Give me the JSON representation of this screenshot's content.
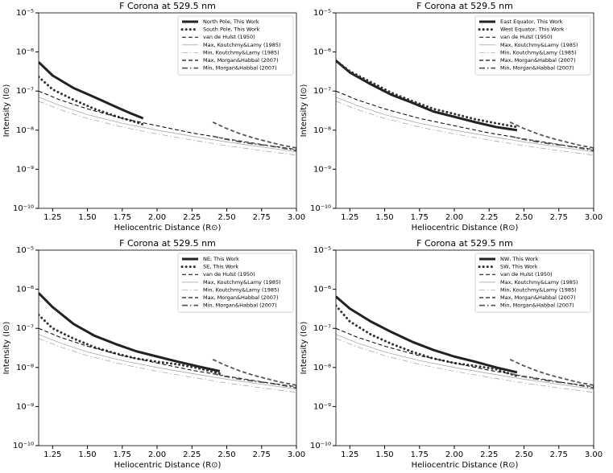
{
  "chart_data": [
    {
      "type": "line",
      "title": "F Corona at 529.5 nm",
      "xlabel": "Heliocentric Distance (R⊙)",
      "ylabel": "Intensity (I⊙)",
      "yscale": "log",
      "legend": "upper right",
      "xlim": [
        1.15,
        3.0
      ],
      "xticks": [
        1.25,
        {
          "value": 1.5,
          "label": "1.50"
        },
        1.75,
        {
          "value": 2,
          "label": "2.00"
        },
        2.25,
        {
          "value": 2.5,
          "label": "2.50"
        },
        2.75,
        {
          "value": 3,
          "label": "3.00"
        }
      ],
      "ylim": [
        1e-10,
        1e-05
      ],
      "yticks": [
        {
          "value": 1e-10,
          "label": "10⁻¹⁰"
        },
        {
          "value": 1e-09,
          "label": "10⁻⁹"
        },
        {
          "value": 1e-08,
          "label": "10⁻⁸"
        },
        {
          "value": 1e-07,
          "label": "10⁻⁷"
        },
        {
          "value": 1e-06,
          "label": "10⁻⁶"
        },
        {
          "value": 1e-05,
          "label": "10⁻⁵"
        }
      ],
      "series": [
        {
          "name": "North Pole, This Work",
          "color": "#222222",
          "linestyle": "solid",
          "linewidth": 3,
          "x": [
            1.15,
            1.25,
            1.4,
            1.55,
            1.7,
            1.8,
            1.9
          ],
          "values": [
            5.5e-07,
            2.5e-07,
            1.2e-07,
            7e-08,
            4e-08,
            2.8e-08,
            2e-08
          ]
        },
        {
          "name": "South Pole, This Work",
          "color": "#333333",
          "linestyle": "dotted",
          "linewidth": 3,
          "x": [
            1.15,
            1.25,
            1.4,
            1.55,
            1.7,
            1.8,
            1.9
          ],
          "values": [
            2.3e-07,
            1.1e-07,
            6e-08,
            3.5e-08,
            2.3e-08,
            1.8e-08,
            1.4e-08
          ]
        },
        {
          "name": "van de Hulst (1950)",
          "color": "#000000",
          "linestyle": "dashed",
          "linewidth": 1,
          "x": [
            1.15,
            1.3,
            1.5,
            1.75,
            2.0,
            2.25,
            2.5,
            2.75,
            3.0
          ],
          "values": [
            1e-07,
            6e-08,
            3.5e-08,
            2e-08,
            1.3e-08,
            8.5e-09,
            6e-09,
            4.3e-09,
            3.2e-09
          ]
        },
        {
          "name": "Max, Koutchmy&Lamy (1985)",
          "color": "#aaaaaa",
          "linestyle": "solid",
          "linewidth": 0.8,
          "x": [
            1.15,
            1.3,
            1.5,
            1.75,
            2.0,
            2.25,
            2.5,
            2.75,
            3.0
          ],
          "values": [
            7e-08,
            4.3e-08,
            2.5e-08,
            1.5e-08,
            1e-08,
            7e-09,
            5e-09,
            3.7e-09,
            2.8e-09
          ]
        },
        {
          "name": "Min, Koutchmy&Lamy (1985)",
          "color": "#aaaaaa",
          "linestyle": "dashdot",
          "linewidth": 0.8,
          "x": [
            1.15,
            1.3,
            1.5,
            1.75,
            2.0,
            2.25,
            2.5,
            2.75,
            3.0
          ],
          "values": [
            5.5e-08,
            3.4e-08,
            2e-08,
            1.2e-08,
            8e-09,
            5.6e-09,
            4e-09,
            3e-09,
            2.3e-09
          ]
        },
        {
          "name": "Max, Morgan&Habbal (2007)",
          "color": "#555555",
          "linestyle": "dashed",
          "linewidth": 1.8,
          "x": [
            2.4,
            2.5,
            2.6,
            2.7,
            2.8,
            2.9,
            3.0
          ],
          "values": [
            1.6e-08,
            1.1e-08,
            8e-09,
            6.2e-09,
            5e-09,
            4.1e-09,
            3.5e-09
          ]
        },
        {
          "name": "Min, Morgan&Habbal (2007)",
          "color": "#555555",
          "linestyle": "dashdot",
          "linewidth": 1.8,
          "x": [
            2.4,
            2.5,
            2.6,
            2.7,
            2.8,
            2.9,
            3.0
          ],
          "values": [
            7e-09,
            5.8e-09,
            5e-09,
            4.4e-09,
            4e-09,
            3.5e-09,
            3e-09
          ]
        }
      ]
    },
    {
      "type": "line",
      "title": "F Corona at 529.5 nm",
      "xlabel": "Heliocentric Distance (R⊙)",
      "ylabel": "Intensity (I⊙)",
      "yscale": "log",
      "legend": "upper right",
      "xlim": [
        1.15,
        3.0
      ],
      "xticks": [
        1.25,
        {
          "value": 1.5,
          "label": "1.50"
        },
        1.75,
        {
          "value": 2,
          "label": "2.00"
        },
        2.25,
        {
          "value": 2.5,
          "label": "2.50"
        },
        2.75,
        {
          "value": 3,
          "label": "3.00"
        }
      ],
      "ylim": [
        1e-10,
        1e-05
      ],
      "yticks": [
        {
          "value": 1e-10,
          "label": "10⁻¹⁰"
        },
        {
          "value": 1e-09,
          "label": "10⁻⁹"
        },
        {
          "value": 1e-08,
          "label": "10⁻⁸"
        },
        {
          "value": 1e-07,
          "label": "10⁻⁷"
        },
        {
          "value": 1e-06,
          "label": "10⁻⁶"
        },
        {
          "value": 1e-05,
          "label": "10⁻⁵"
        }
      ],
      "series": [
        {
          "name": "East Equator, This Work",
          "color": "#222222",
          "linestyle": "solid",
          "linewidth": 3,
          "x": [
            1.15,
            1.25,
            1.4,
            1.55,
            1.7,
            1.85,
            2.0,
            2.15,
            2.3,
            2.45
          ],
          "values": [
            6e-07,
            3e-07,
            1.5e-07,
            8e-08,
            5e-08,
            3e-08,
            2.2e-08,
            1.6e-08,
            1.2e-08,
            1e-08
          ]
        },
        {
          "name": "West Equator, This Work",
          "color": "#333333",
          "linestyle": "dotted",
          "linewidth": 3,
          "x": [
            1.15,
            1.25,
            1.4,
            1.55,
            1.7,
            1.85,
            2.0,
            2.15,
            2.3,
            2.45
          ],
          "values": [
            6e-07,
            3.2e-07,
            1.7e-07,
            9e-08,
            5.5e-08,
            3.5e-08,
            2.6e-08,
            1.9e-08,
            1.5e-08,
            1.2e-08
          ]
        },
        {
          "name": "van de Hulst (1950)",
          "color": "#000000",
          "linestyle": "dashed",
          "linewidth": 1,
          "x": [
            1.15,
            1.3,
            1.5,
            1.75,
            2.0,
            2.25,
            2.5,
            2.75,
            3.0
          ],
          "values": [
            1e-07,
            6e-08,
            3.5e-08,
            2e-08,
            1.3e-08,
            8.5e-09,
            6e-09,
            4.3e-09,
            3.2e-09
          ]
        },
        {
          "name": "Max, Koutchmy&Lamy (1985)",
          "color": "#aaaaaa",
          "linestyle": "solid",
          "linewidth": 0.8,
          "x": [
            1.15,
            1.3,
            1.5,
            1.75,
            2.0,
            2.25,
            2.5,
            2.75,
            3.0
          ],
          "values": [
            7e-08,
            4.3e-08,
            2.5e-08,
            1.5e-08,
            1e-08,
            7e-09,
            5e-09,
            3.7e-09,
            2.8e-09
          ]
        },
        {
          "name": "Min, Koutchmy&Lamy (1985)",
          "color": "#aaaaaa",
          "linestyle": "dashdot",
          "linewidth": 0.8,
          "x": [
            1.15,
            1.3,
            1.5,
            1.75,
            2.0,
            2.25,
            2.5,
            2.75,
            3.0
          ],
          "values": [
            5.5e-08,
            3.4e-08,
            2e-08,
            1.2e-08,
            8e-09,
            5.6e-09,
            4e-09,
            3e-09,
            2.3e-09
          ]
        },
        {
          "name": "Max, Morgan&Habbal (2007)",
          "color": "#555555",
          "linestyle": "dashed",
          "linewidth": 1.8,
          "x": [
            2.4,
            2.5,
            2.6,
            2.7,
            2.8,
            2.9,
            3.0
          ],
          "values": [
            1.6e-08,
            1.1e-08,
            8e-09,
            6.2e-09,
            5e-09,
            4.1e-09,
            3.5e-09
          ]
        },
        {
          "name": "Min, Morgan&Habbal (2007)",
          "color": "#555555",
          "linestyle": "dashdot",
          "linewidth": 1.8,
          "x": [
            2.4,
            2.5,
            2.6,
            2.7,
            2.8,
            2.9,
            3.0
          ],
          "values": [
            7e-09,
            5.8e-09,
            5e-09,
            4.4e-09,
            4e-09,
            3.5e-09,
            3e-09
          ]
        }
      ]
    },
    {
      "type": "line",
      "title": "F Corona at 529.5 nm",
      "xlabel": "Heliocentric Distance (R⊙)",
      "ylabel": "Intensity (I⊙)",
      "yscale": "log",
      "legend": "upper right",
      "xlim": [
        1.15,
        3.0
      ],
      "xticks": [
        1.25,
        {
          "value": 1.5,
          "label": "1.50"
        },
        1.75,
        {
          "value": 2,
          "label": "2.00"
        },
        2.25,
        {
          "value": 2.5,
          "label": "2.50"
        },
        2.75,
        {
          "value": 3,
          "label": "3.00"
        }
      ],
      "ylim": [
        1e-10,
        1e-05
      ],
      "yticks": [
        {
          "value": 1e-10,
          "label": "10⁻¹⁰"
        },
        {
          "value": 1e-09,
          "label": "10⁻⁹"
        },
        {
          "value": 1e-08,
          "label": "10⁻⁸"
        },
        {
          "value": 1e-07,
          "label": "10⁻⁷"
        },
        {
          "value": 1e-06,
          "label": "10⁻⁶"
        },
        {
          "value": 1e-05,
          "label": "10⁻⁵"
        }
      ],
      "series": [
        {
          "name": "NE, This Work",
          "color": "#222222",
          "linestyle": "solid",
          "linewidth": 3,
          "x": [
            1.15,
            1.25,
            1.4,
            1.55,
            1.7,
            1.85,
            2.0,
            2.15,
            2.3,
            2.45
          ],
          "values": [
            8e-07,
            3.5e-07,
            1.3e-07,
            6.5e-08,
            4e-08,
            2.6e-08,
            1.9e-08,
            1.4e-08,
            1.05e-08,
            8e-09
          ]
        },
        {
          "name": "SE, This Work",
          "color": "#333333",
          "linestyle": "dotted",
          "linewidth": 3,
          "x": [
            1.15,
            1.25,
            1.4,
            1.55,
            1.7,
            1.85,
            2.0,
            2.15,
            2.3,
            2.45
          ],
          "values": [
            2.2e-07,
            1e-07,
            5.5e-08,
            3.3e-08,
            2.3e-08,
            1.7e-08,
            1.4e-08,
            1.2e-08,
            9.5e-09,
            7e-09
          ]
        },
        {
          "name": "van de Hulst (1950)",
          "color": "#000000",
          "linestyle": "dashed",
          "linewidth": 1,
          "x": [
            1.15,
            1.3,
            1.5,
            1.75,
            2.0,
            2.25,
            2.5,
            2.75,
            3.0
          ],
          "values": [
            1e-07,
            6e-08,
            3.5e-08,
            2e-08,
            1.3e-08,
            8.5e-09,
            6e-09,
            4.3e-09,
            3.2e-09
          ]
        },
        {
          "name": "Max, Koutchmy&Lamy (1985)",
          "color": "#aaaaaa",
          "linestyle": "solid",
          "linewidth": 0.8,
          "x": [
            1.15,
            1.3,
            1.5,
            1.75,
            2.0,
            2.25,
            2.5,
            2.75,
            3.0
          ],
          "values": [
            7e-08,
            4.3e-08,
            2.5e-08,
            1.5e-08,
            1e-08,
            7e-09,
            5e-09,
            3.7e-09,
            2.8e-09
          ]
        },
        {
          "name": "Min, Koutchmy&Lamy (1985)",
          "color": "#aaaaaa",
          "linestyle": "dashdot",
          "linewidth": 0.8,
          "x": [
            1.15,
            1.3,
            1.5,
            1.75,
            2.0,
            2.25,
            2.5,
            2.75,
            3.0
          ],
          "values": [
            5.5e-08,
            3.4e-08,
            2e-08,
            1.2e-08,
            8e-09,
            5.6e-09,
            4e-09,
            3e-09,
            2.3e-09
          ]
        },
        {
          "name": "Max, Morgan&Habbal (2007)",
          "color": "#555555",
          "linestyle": "dashed",
          "linewidth": 1.8,
          "x": [
            2.4,
            2.5,
            2.6,
            2.7,
            2.8,
            2.9,
            3.0
          ],
          "values": [
            1.6e-08,
            1.1e-08,
            8e-09,
            6.2e-09,
            5e-09,
            4.1e-09,
            3.5e-09
          ]
        },
        {
          "name": "Min, Morgan&Habbal (2007)",
          "color": "#555555",
          "linestyle": "dashdot",
          "linewidth": 1.8,
          "x": [
            2.4,
            2.5,
            2.6,
            2.7,
            2.8,
            2.9,
            3.0
          ],
          "values": [
            7e-09,
            5.8e-09,
            5e-09,
            4.4e-09,
            4e-09,
            3.5e-09,
            3e-09
          ]
        }
      ]
    },
    {
      "type": "line",
      "title": "F Corona at 529.5 nm",
      "xlabel": "Heliocentric Distance (R⊙)",
      "ylabel": "Intensity (I⊙)",
      "yscale": "log",
      "legend": "upper right",
      "xlim": [
        1.15,
        3.0
      ],
      "xticks": [
        1.25,
        {
          "value": 1.5,
          "label": "1.50"
        },
        1.75,
        {
          "value": 2,
          "label": "2.00"
        },
        2.25,
        {
          "value": 2.5,
          "label": "2.50"
        },
        2.75,
        {
          "value": 3,
          "label": "3.00"
        }
      ],
      "ylim": [
        1e-10,
        1e-05
      ],
      "yticks": [
        {
          "value": 1e-10,
          "label": "10⁻¹⁰"
        },
        {
          "value": 1e-09,
          "label": "10⁻⁹"
        },
        {
          "value": 1e-08,
          "label": "10⁻⁸"
        },
        {
          "value": 1e-07,
          "label": "10⁻⁷"
        },
        {
          "value": 1e-06,
          "label": "10⁻⁶"
        },
        {
          "value": 1e-05,
          "label": "10⁻⁵"
        }
      ],
      "series": [
        {
          "name": "NW, This Work",
          "color": "#222222",
          "linestyle": "solid",
          "linewidth": 3,
          "x": [
            1.15,
            1.25,
            1.4,
            1.55,
            1.7,
            1.85,
            2.0,
            2.15,
            2.3,
            2.45
          ],
          "values": [
            6.5e-07,
            3.2e-07,
            1.5e-07,
            8e-08,
            4.5e-08,
            2.8e-08,
            1.9e-08,
            1.4e-08,
            1e-08,
            7.5e-09
          ]
        },
        {
          "name": "SW, This Work",
          "color": "#333333",
          "linestyle": "dotted",
          "linewidth": 3,
          "x": [
            1.15,
            1.25,
            1.4,
            1.55,
            1.7,
            1.85,
            2.0,
            2.15,
            2.3,
            2.45
          ],
          "values": [
            3.8e-07,
            1.5e-07,
            7e-08,
            4e-08,
            2.5e-08,
            1.7e-08,
            1.3e-08,
            1.1e-08,
            9e-09,
            6e-09
          ]
        },
        {
          "name": "van de Hulst (1950)",
          "color": "#000000",
          "linestyle": "dashed",
          "linewidth": 1,
          "x": [
            1.15,
            1.3,
            1.5,
            1.75,
            2.0,
            2.25,
            2.5,
            2.75,
            3.0
          ],
          "values": [
            1e-07,
            6e-08,
            3.5e-08,
            2e-08,
            1.3e-08,
            8.5e-09,
            6e-09,
            4.3e-09,
            3.2e-09
          ]
        },
        {
          "name": "Max, Koutchmy&Lamy (1985)",
          "color": "#aaaaaa",
          "linestyle": "solid",
          "linewidth": 0.8,
          "x": [
            1.15,
            1.3,
            1.5,
            1.75,
            2.0,
            2.25,
            2.5,
            2.75,
            3.0
          ],
          "values": [
            7e-08,
            4.3e-08,
            2.5e-08,
            1.5e-08,
            1e-08,
            7e-09,
            5e-09,
            3.7e-09,
            2.8e-09
          ]
        },
        {
          "name": "Min, Koutchmy&Lamy (1985)",
          "color": "#aaaaaa",
          "linestyle": "dashdot",
          "linewidth": 0.8,
          "x": [
            1.15,
            1.3,
            1.5,
            1.75,
            2.0,
            2.25,
            2.5,
            2.75,
            3.0
          ],
          "values": [
            5.5e-08,
            3.4e-08,
            2e-08,
            1.2e-08,
            8e-09,
            5.6e-09,
            4e-09,
            3e-09,
            2.3e-09
          ]
        },
        {
          "name": "Max, Morgan&Habbal (2007)",
          "color": "#555555",
          "linestyle": "dashed",
          "linewidth": 1.8,
          "x": [
            2.4,
            2.5,
            2.6,
            2.7,
            2.8,
            2.9,
            3.0
          ],
          "values": [
            1.6e-08,
            1.1e-08,
            8e-09,
            6.2e-09,
            5e-09,
            4.1e-09,
            3.5e-09
          ]
        },
        {
          "name": "Min, Morgan&Habbal (2007)",
          "color": "#555555",
          "linestyle": "dashdot",
          "linewidth": 1.8,
          "x": [
            2.4,
            2.5,
            2.6,
            2.7,
            2.8,
            2.9,
            3.0
          ],
          "values": [
            7e-09,
            5.8e-09,
            5e-09,
            4.4e-09,
            4e-09,
            3.5e-09,
            3e-09
          ]
        }
      ]
    }
  ]
}
